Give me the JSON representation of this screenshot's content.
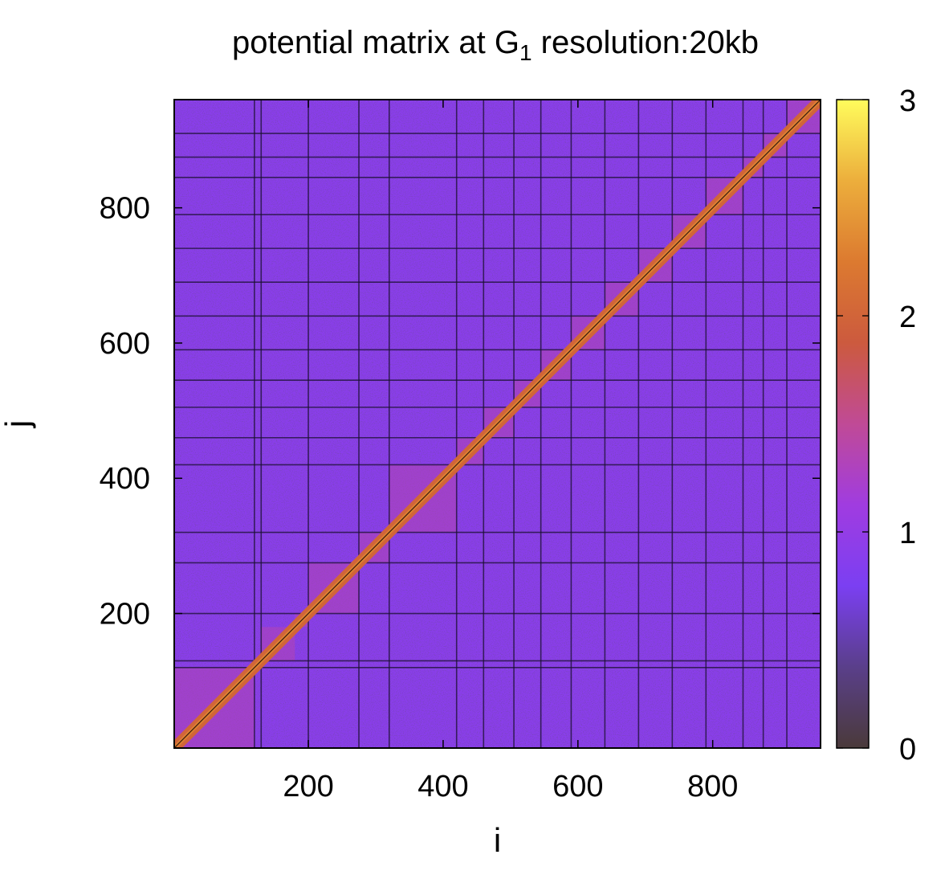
{
  "chart_data": {
    "type": "heatmap",
    "title": {
      "prefix": "potential matrix at G",
      "subscript": "1",
      "suffix": " resolution:20kb"
    },
    "xlabel": "i",
    "ylabel": "j",
    "xlim": [
      1,
      960
    ],
    "ylim": [
      1,
      960
    ],
    "xticks": [
      200,
      400,
      600,
      800
    ],
    "yticks": [
      200,
      400,
      600,
      800
    ],
    "colorbar": {
      "range": [
        0,
        3
      ],
      "ticks": [
        0,
        1,
        2,
        3
      ],
      "colors": [
        "#4a3a3a",
        "#5a3f8a",
        "#7b3ff2",
        "#a03ce0",
        "#c04a96",
        "#cc5a3e",
        "#dc7a30",
        "#ecae3c",
        "#fffc5c"
      ]
    },
    "background_value": 0.9,
    "diagonal_value": 2.0,
    "domain_boundaries": [
      1,
      120,
      130,
      180,
      200,
      275,
      320,
      420,
      460,
      505,
      545,
      590,
      640,
      690,
      740,
      790,
      845,
      875,
      910,
      960
    ],
    "grid_lines": [
      120,
      130,
      200,
      275,
      320,
      420,
      460,
      505,
      545,
      590,
      640,
      690,
      740,
      790,
      845,
      875,
      910
    ]
  }
}
